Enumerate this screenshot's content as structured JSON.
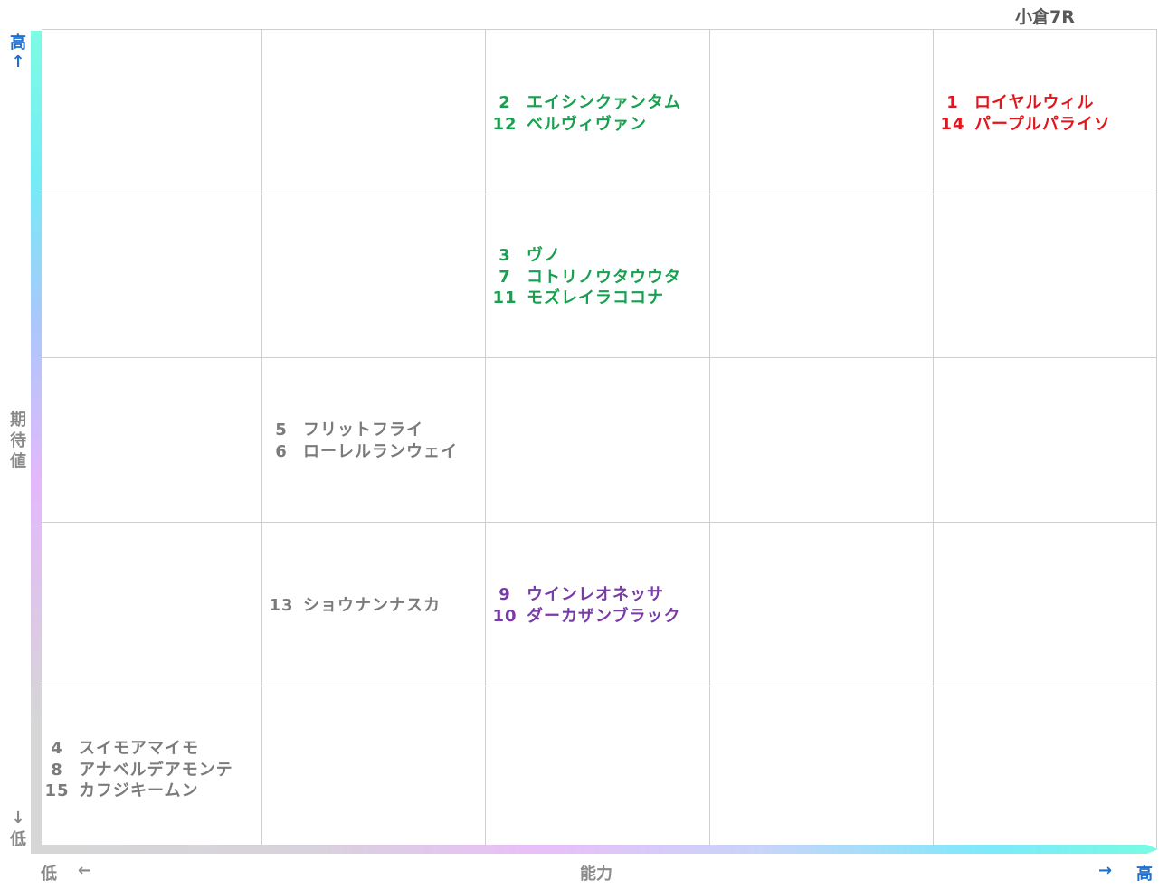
{
  "chart_data": {
    "type": "scatter",
    "title": "小倉7R",
    "xlabel": "能力",
    "ylabel": "期待値",
    "x_low": "低",
    "x_high": "高",
    "y_low": "低",
    "y_high": "高",
    "x_arrow_left": "←",
    "x_arrow_right": "→",
    "y_arrow_up": "↑",
    "y_arrow_down": "↓",
    "grid_columns": 5,
    "grid_rows": 5,
    "groups": [
      {
        "col": 4,
        "row": 4,
        "color": "#e3141b",
        "horses": [
          {
            "num": "1",
            "name": "ロイヤルウィル"
          },
          {
            "num": "14",
            "name": "パープルパライソ"
          }
        ]
      },
      {
        "col": 2,
        "row": 4,
        "color": "#17a04f",
        "horses": [
          {
            "num": "2",
            "name": "エイシンクァンタム"
          },
          {
            "num": "12",
            "name": "ベルヴィヴァン"
          }
        ]
      },
      {
        "col": 2,
        "row": 3,
        "color": "#17a04f",
        "horses": [
          {
            "num": "3",
            "name": "ヴノ"
          },
          {
            "num": "7",
            "name": "コトリノウタウウタ"
          },
          {
            "num": "11",
            "name": "モズレイラココナ"
          }
        ]
      },
      {
        "col": 1,
        "row": 2,
        "color": "#7b7b7b",
        "horses": [
          {
            "num": "5",
            "name": "フリットフライ"
          },
          {
            "num": "6",
            "name": "ローレルランウェイ"
          }
        ]
      },
      {
        "col": 1,
        "row": 1,
        "color": "#7b7b7b",
        "horses": [
          {
            "num": "13",
            "name": "ショウナンナスカ"
          }
        ]
      },
      {
        "col": 2,
        "row": 1,
        "color": "#7a3aa8",
        "horses": [
          {
            "num": "9",
            "name": "ウインレオネッサ"
          },
          {
            "num": "10",
            "name": "ダーカザンブラック"
          }
        ]
      },
      {
        "col": 0,
        "row": 0,
        "color": "#7b7b7b",
        "horses": [
          {
            "num": "4",
            "name": "スイモアマイモ"
          },
          {
            "num": "8",
            "name": "アナベルデアモンテ"
          },
          {
            "num": "15",
            "name": "カフジキームン"
          }
        ]
      }
    ]
  }
}
